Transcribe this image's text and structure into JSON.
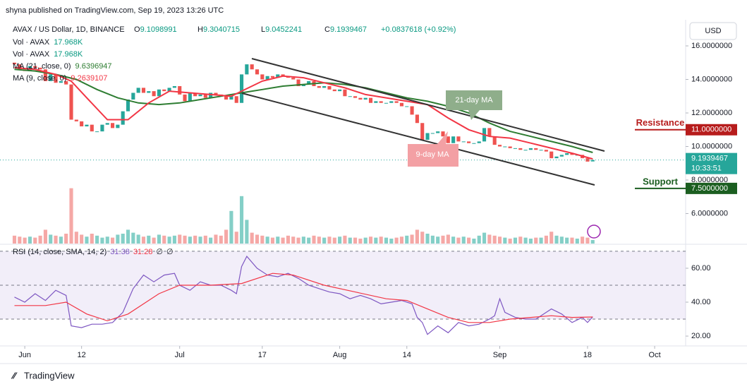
{
  "header": {
    "published": "shyna published on TradingView.com, Sep 19, 2023 13:26 UTC",
    "symbol": "AVAX / US Dollar, 1D, BINANCE",
    "ohlc": [
      {
        "label": "O",
        "value": "9.1098991"
      },
      {
        "label": "H",
        "value": "9.3040715"
      },
      {
        "label": "L",
        "value": "9.0452241"
      },
      {
        "label": "C",
        "value": "9.1939467"
      }
    ],
    "change": "+0.0837618 (+0.92%)",
    "indicators": [
      {
        "name": "Vol · AVAX",
        "value": "17.968K"
      },
      {
        "name": "Vol · AVAX",
        "value": "17.968K"
      },
      {
        "name": "MA (21, close, 0)",
        "value": "9.6396947"
      },
      {
        "name": "MA (9, close, 0)",
        "value": "9.2639107"
      }
    ],
    "currency": "USD",
    "price_label": "9.1939467",
    "countdown": "10:33:51",
    "footer": "TradingView"
  },
  "chart_data": [
    {
      "type": "candlestick",
      "up_color": "#26a69a",
      "down_color": "#ef5350",
      "xlim": [
        -2.8,
        130
      ],
      "xticks": [
        {
          "value": 2,
          "label": "Jun"
        },
        {
          "value": 13,
          "label": "12"
        },
        {
          "value": 32,
          "label": "Jul"
        },
        {
          "value": 48,
          "label": "17"
        },
        {
          "value": 63,
          "label": "Aug"
        },
        {
          "value": 76,
          "label": "14"
        },
        {
          "value": 94,
          "label": "Sep"
        },
        {
          "value": 111,
          "label": "18"
        },
        {
          "value": 124,
          "label": "Oct"
        }
      ],
      "ylim": [
        4.21,
        17.39
      ],
      "yticks": [
        {
          "value": 6,
          "label": "6.0000000"
        },
        {
          "value": 8,
          "label": "8.0000000"
        },
        {
          "value": 10,
          "label": "10.0000000"
        },
        {
          "value": 12,
          "label": "12.0000000"
        },
        {
          "value": 14,
          "label": "14.0000000"
        },
        {
          "value": 16,
          "label": "16.0000000"
        }
      ],
      "open": [
        15.0,
        14.9,
        14.6,
        14.5,
        14.8,
        14.7,
        14.6,
        13.9,
        14.3,
        13.8,
        13.9,
        13.7,
        11.6,
        11.5,
        11.2,
        11.3,
        10.9,
        10.9,
        11.3,
        11.4,
        11.1,
        11.3,
        12.1,
        12.8,
        13.2,
        13.5,
        13.2,
        13.3,
        13.0,
        13.4,
        13.3,
        13.5,
        13.6,
        13.1,
        12.7,
        13.2,
        13.0,
        13.1,
        12.9,
        13.2,
        13.1,
        13.0,
        12.8,
        13.0,
        12.6,
        14.3,
        14.9,
        14.6,
        14.3,
        14.0,
        14.2,
        14.1,
        14.3,
        14.2,
        14.1,
        14.0,
        13.6,
        13.7,
        13.9,
        13.6,
        13.5,
        13.6,
        13.4,
        13.3,
        13.4,
        13.0,
        13.0,
        12.9,
        12.8,
        12.9,
        12.6,
        12.7,
        12.6,
        12.6,
        12.7,
        12.6,
        12.4,
        12.4,
        11.9,
        11.4,
        10.4,
        10.8,
        10.8,
        10.9,
        10.6,
        10.2,
        10.6,
        10.3,
        10.3,
        10.2,
        10.2,
        10.3,
        11.1,
        10.6,
        10.1,
        10.0,
        10.0,
        9.9,
        9.9,
        9.8,
        9.8,
        9.9,
        9.8,
        9.8,
        9.7,
        9.3,
        9.4,
        9.5,
        9.6,
        9.5,
        9.5,
        9.3,
        9.1098991
      ],
      "close": [
        14.9,
        14.6,
        14.5,
        14.8,
        14.7,
        14.6,
        13.9,
        14.3,
        13.8,
        13.9,
        13.7,
        11.6,
        11.5,
        11.2,
        11.3,
        10.9,
        10.9,
        11.3,
        11.4,
        11.1,
        11.3,
        12.1,
        12.8,
        13.2,
        13.5,
        13.2,
        13.3,
        13.0,
        13.4,
        13.3,
        13.5,
        13.6,
        13.1,
        12.7,
        13.2,
        13.0,
        13.1,
        12.9,
        13.2,
        13.1,
        13.0,
        12.8,
        13.0,
        12.6,
        14.3,
        14.9,
        14.6,
        14.3,
        14.0,
        14.2,
        14.1,
        14.3,
        14.2,
        14.1,
        14.0,
        13.6,
        13.7,
        13.9,
        13.6,
        13.5,
        13.6,
        13.4,
        13.3,
        13.4,
        13.0,
        13.0,
        12.9,
        12.8,
        12.9,
        12.6,
        12.7,
        12.6,
        12.6,
        12.7,
        12.6,
        12.4,
        12.4,
        11.9,
        11.4,
        10.4,
        10.8,
        10.8,
        10.9,
        10.6,
        10.2,
        10.6,
        10.3,
        10.3,
        10.2,
        10.2,
        10.3,
        11.1,
        10.6,
        10.1,
        10.0,
        10.0,
        9.9,
        9.9,
        9.8,
        9.8,
        9.9,
        9.8,
        9.8,
        9.7,
        9.3,
        9.4,
        9.5,
        9.6,
        9.5,
        9.5,
        9.3,
        9.1,
        9.1939467
      ],
      "volume": [
        40,
        35,
        30,
        35,
        30,
        40,
        70,
        45,
        40,
        35,
        50,
        280,
        60,
        45,
        35,
        50,
        40,
        30,
        35,
        30,
        45,
        50,
        70,
        55,
        45,
        35,
        40,
        30,
        45,
        40,
        35,
        40,
        45,
        40,
        35,
        40,
        35,
        40,
        30,
        45,
        40,
        70,
        165,
        60,
        240,
        120,
        55,
        45,
        40,
        35,
        30,
        35,
        30,
        40,
        35,
        30,
        35,
        30,
        40,
        35,
        30,
        35,
        30,
        35,
        40,
        30,
        30,
        25,
        30,
        35,
        30,
        35,
        30,
        25,
        30,
        35,
        40,
        45,
        70,
        60,
        50,
        40,
        35,
        40,
        45,
        35,
        30,
        35,
        30,
        25,
        40,
        55,
        45,
        40,
        35,
        30,
        25,
        30,
        35,
        30,
        25,
        30,
        30,
        40,
        60,
        40,
        35,
        30,
        30,
        25,
        35,
        30,
        17.968
      ],
      "series": [
        {
          "name": "MA (21, close, 0)",
          "color": "#2e7d32",
          "x": [
            0,
            4,
            8,
            12,
            16,
            20,
            24,
            28,
            32,
            36,
            40,
            44,
            48,
            52,
            56,
            60,
            64,
            68,
            72,
            76,
            80,
            84,
            88,
            92,
            96,
            100,
            104,
            108,
            112
          ],
          "values": [
            14.6,
            14.5,
            14.3,
            14.0,
            13.4,
            12.9,
            12.6,
            12.5,
            12.6,
            12.8,
            13.0,
            13.2,
            13.4,
            13.6,
            13.7,
            13.8,
            13.7,
            13.5,
            13.2,
            12.9,
            12.7,
            12.4,
            12.0,
            11.4,
            10.9,
            10.6,
            10.3,
            10.0,
            9.64
          ]
        },
        {
          "name": "MA (9, close, 0)",
          "color": "#f23645",
          "x": [
            0,
            4,
            8,
            11,
            14,
            18,
            22,
            26,
            30,
            34,
            38,
            42,
            44,
            48,
            52,
            56,
            60,
            64,
            68,
            72,
            76,
            80,
            84,
            88,
            92,
            96,
            100,
            104,
            108,
            112
          ],
          "values": [
            14.7,
            14.6,
            14.3,
            13.9,
            12.9,
            11.6,
            11.6,
            12.6,
            13.3,
            13.2,
            13.1,
            13.0,
            13.3,
            13.9,
            14.2,
            14.1,
            13.8,
            13.5,
            13.1,
            12.9,
            12.7,
            12.5,
            11.7,
            11.0,
            10.6,
            10.5,
            10.2,
            9.9,
            9.6,
            9.26
          ]
        }
      ],
      "levels": [
        {
          "name": "Resistance",
          "value": 11,
          "label": "11.0000000",
          "color": "#b71c1c"
        },
        {
          "name": "Support",
          "value": 7.5,
          "label": "7.5000000",
          "color": "#1b5e20"
        }
      ],
      "annotations": [
        "21-day MA",
        "9-day MA"
      ]
    },
    {
      "type": "line",
      "title": "RSI (14, close, SMA, 14, 2)",
      "value_labels": [
        "31.38",
        "31.28",
        "∅",
        "∅"
      ],
      "xlim": [
        -2.8,
        130
      ],
      "ylim": [
        14.2,
        73.3
      ],
      "yticks": [
        {
          "value": 20,
          "label": "20.00"
        },
        {
          "value": 40,
          "label": "40.00"
        },
        {
          "value": 60,
          "label": "60.00"
        }
      ],
      "levels": [
        70,
        50,
        30
      ],
      "series": [
        {
          "name": "RSI",
          "color": "#7e57c2",
          "x": [
            0,
            2,
            4,
            6,
            8,
            10,
            11,
            13,
            15,
            17,
            19,
            21,
            23,
            25,
            27,
            29,
            31,
            32,
            34,
            36,
            38,
            40,
            42,
            43,
            44,
            45,
            47,
            49,
            51,
            53,
            55,
            57,
            59,
            61,
            63,
            65,
            67,
            69,
            71,
            73,
            75,
            77,
            78,
            79,
            80,
            82,
            84,
            86,
            88,
            90,
            92,
            93,
            94,
            95,
            97,
            99,
            101,
            103,
            104,
            106,
            108,
            110,
            111,
            112
          ],
          "values": [
            43,
            40,
            45,
            41,
            47,
            44,
            26,
            25,
            27,
            27,
            28,
            34,
            48,
            56,
            52,
            56,
            57,
            50,
            47,
            52,
            50,
            50,
            47,
            45,
            61,
            67,
            60,
            56,
            55,
            57,
            54,
            50,
            48,
            46,
            45,
            42,
            44,
            42,
            39,
            40,
            41,
            39,
            31,
            28,
            21,
            26,
            22,
            28,
            26,
            27,
            30,
            32,
            42,
            34,
            31,
            30,
            30,
            34,
            36,
            33,
            28,
            31,
            28,
            31.38
          ]
        },
        {
          "name": "RSI-based MA",
          "color": "#f23645",
          "x": [
            0,
            6,
            10,
            14,
            18,
            22,
            28,
            32,
            38,
            44,
            50,
            54,
            60,
            66,
            72,
            76,
            80,
            84,
            88,
            92,
            96,
            100,
            104,
            108,
            112
          ],
          "values": [
            38,
            38,
            40,
            33,
            29,
            33,
            45,
            50,
            50,
            51,
            57,
            56,
            50,
            46,
            42,
            41,
            36,
            31,
            28,
            28,
            30,
            31,
            32,
            31,
            31.28
          ]
        }
      ]
    }
  ]
}
